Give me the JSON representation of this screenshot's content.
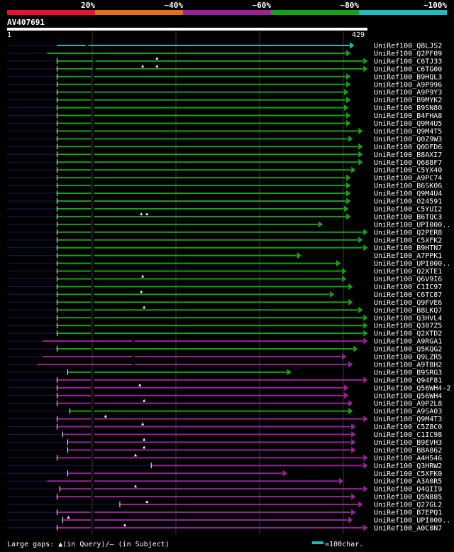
{
  "colors": {
    "bg": "#000000",
    "c20": "#e8132b",
    "c40": "#e07020",
    "c60": "#992299",
    "c80": "#18a018",
    "c100": "#22bbbb",
    "grid": "#3a3a3a",
    "seq": "#ffffff",
    "thin": "#1a1a5a"
  },
  "scale": {
    "labels": [
      "20%",
      "~40%",
      "~60%",
      "~80%",
      "~100%"
    ],
    "colors": [
      "#e8132b",
      "#e07020",
      "#992299",
      "#18a018",
      "#22bbbb"
    ]
  },
  "query": {
    "name": "AV407691",
    "start_label": "1",
    "end_label": "429",
    "length": 429
  },
  "footer": {
    "gaps_text": "Large gaps: ▲(in Query)/– (in Subject)",
    "legend_text": "=100char."
  },
  "chart_data": {
    "type": "alignment",
    "x_range": [
      1,
      429
    ],
    "hits": [
      {
        "name": "UniRef100_Q8LJS2",
        "start": 70,
        "end": 486,
        "color": "c100",
        "tl": 0,
        "gaps": [
          110
        ],
        "q": []
      },
      {
        "name": "UniRef100_Q2PF09",
        "start": 56,
        "end": 481,
        "color": "c80",
        "tl": 0,
        "gaps": [],
        "q": []
      },
      {
        "name": "UniRef100_C6TJ33",
        "start": 70,
        "end": 505,
        "color": "c80",
        "tl": 1,
        "gaps": [
          120
        ],
        "q": [
          210
        ]
      },
      {
        "name": "UniRef100_C6TG00",
        "start": 70,
        "end": 505,
        "color": "c80",
        "tl": 1,
        "gaps": [
          120
        ],
        "q": [
          190,
          210
        ]
      },
      {
        "name": "UniRef100_B9HQL3",
        "start": 70,
        "end": 481,
        "color": "c80",
        "tl": 1,
        "gaps": [
          118
        ],
        "q": []
      },
      {
        "name": "UniRef100_A9P996",
        "start": 70,
        "end": 481,
        "color": "c80",
        "tl": 1,
        "gaps": [
          118
        ],
        "q": []
      },
      {
        "name": "UniRef100_A9P9Y3",
        "start": 70,
        "end": 478,
        "color": "c80",
        "tl": 1,
        "gaps": [
          118
        ],
        "q": []
      },
      {
        "name": "UniRef100_B9MYK2",
        "start": 70,
        "end": 481,
        "color": "c80",
        "tl": 1,
        "gaps": [
          118
        ],
        "q": []
      },
      {
        "name": "UniRef100_B9SN80",
        "start": 70,
        "end": 478,
        "color": "c80",
        "tl": 1,
        "gaps": [
          118
        ],
        "q": []
      },
      {
        "name": "UniRef100_B4FHA8",
        "start": 70,
        "end": 481,
        "color": "c80",
        "tl": 1,
        "gaps": [
          118
        ],
        "q": []
      },
      {
        "name": "UniRef100_Q9M4U5",
        "start": 70,
        "end": 481,
        "color": "c80",
        "tl": 1,
        "gaps": [
          118
        ],
        "q": []
      },
      {
        "name": "UniRef100_Q9M4T5",
        "start": 70,
        "end": 498,
        "color": "c80",
        "tl": 1,
        "gaps": [
          118
        ],
        "q": []
      },
      {
        "name": "UniRef100_Q0Z9W3",
        "start": 70,
        "end": 484,
        "color": "c80",
        "tl": 1,
        "gaps": [
          118
        ],
        "q": []
      },
      {
        "name": "UniRef100_Q0DFD6",
        "start": 70,
        "end": 498,
        "color": "c80",
        "tl": 1,
        "gaps": [
          118
        ],
        "q": []
      },
      {
        "name": "UniRef100_B8AXI7",
        "start": 70,
        "end": 498,
        "color": "c80",
        "tl": 1,
        "gaps": [
          118
        ],
        "q": []
      },
      {
        "name": "UniRef100_Q688F7",
        "start": 70,
        "end": 498,
        "color": "c80",
        "tl": 1,
        "gaps": [
          118
        ],
        "q": []
      },
      {
        "name": "UniRef100_C5YX40",
        "start": 70,
        "end": 488,
        "color": "c80",
        "tl": 1,
        "gaps": [
          118
        ],
        "q": []
      },
      {
        "name": "UniRef100_A9PC74",
        "start": 70,
        "end": 481,
        "color": "c80",
        "tl": 1,
        "gaps": [
          118
        ],
        "q": []
      },
      {
        "name": "UniRef100_B6SK06",
        "start": 70,
        "end": 481,
        "color": "c80",
        "tl": 1,
        "gaps": [
          118
        ],
        "q": []
      },
      {
        "name": "UniRef100_Q9M4U4",
        "start": 70,
        "end": 481,
        "color": "c80",
        "tl": 1,
        "gaps": [
          118
        ],
        "q": []
      },
      {
        "name": "UniRef100_O24591",
        "start": 70,
        "end": 481,
        "color": "c80",
        "tl": 1,
        "gaps": [
          118
        ],
        "q": []
      },
      {
        "name": "UniRef100_C5YUI2",
        "start": 70,
        "end": 478,
        "color": "c80",
        "tl": 1,
        "gaps": [
          118
        ],
        "q": []
      },
      {
        "name": "UniRef100_B6TQC3",
        "start": 70,
        "end": 481,
        "color": "c80",
        "tl": 1,
        "gaps": [
          118
        ],
        "q": [
          188,
          196
        ]
      },
      {
        "name": "UniRef100_UPI000..",
        "start": 70,
        "end": 442,
        "color": "c80",
        "tl": 1,
        "gaps": [
          118
        ],
        "q": []
      },
      {
        "name": "UniRef100_Q2PER8",
        "start": 70,
        "end": 505,
        "color": "c80",
        "tl": 1,
        "gaps": [
          118
        ],
        "q": []
      },
      {
        "name": "UniRef100_C5XFK2",
        "start": 70,
        "end": 498,
        "color": "c80",
        "tl": 1,
        "gaps": [
          118
        ],
        "q": []
      },
      {
        "name": "UniRef100_B9HTN7",
        "start": 70,
        "end": 505,
        "color": "c80",
        "tl": 1,
        "gaps": [
          118
        ],
        "q": []
      },
      {
        "name": "UniRef100_A7PPK1",
        "start": 70,
        "end": 412,
        "color": "c80",
        "tl": 1,
        "gaps": [
          118
        ],
        "q": []
      },
      {
        "name": "UniRef100_UPI000..",
        "start": 70,
        "end": 467,
        "color": "c80",
        "tl": 1,
        "gaps": [
          118
        ],
        "q": []
      },
      {
        "name": "UniRef100_Q2XTE1",
        "start": 70,
        "end": 475,
        "color": "c80",
        "tl": 1,
        "gaps": [
          118
        ],
        "q": []
      },
      {
        "name": "UniRef100_Q6V9I6",
        "start": 70,
        "end": 475,
        "color": "c80",
        "tl": 1,
        "gaps": [
          118
        ],
        "q": [
          190
        ]
      },
      {
        "name": "UniRef100_C1IC97",
        "start": 70,
        "end": 484,
        "color": "c80",
        "tl": 1,
        "gaps": [
          118
        ],
        "q": []
      },
      {
        "name": "UniRef100_C6TC87",
        "start": 70,
        "end": 458,
        "color": "c80",
        "tl": 1,
        "gaps": [
          118
        ],
        "q": [
          188
        ]
      },
      {
        "name": "UniRef100_Q9FVE6",
        "start": 70,
        "end": 484,
        "color": "c80",
        "tl": 1,
        "gaps": [
          118
        ],
        "q": []
      },
      {
        "name": "UniRef100_B8LKQ7",
        "start": 70,
        "end": 498,
        "color": "c80",
        "tl": 1,
        "gaps": [
          118
        ],
        "q": [
          192
        ]
      },
      {
        "name": "UniRef100_Q3HVL4",
        "start": 70,
        "end": 505,
        "color": "c80",
        "tl": 1,
        "gaps": [
          118
        ],
        "q": []
      },
      {
        "name": "UniRef100_Q307Z5",
        "start": 70,
        "end": 505,
        "color": "c80",
        "tl": 1,
        "gaps": [
          118
        ],
        "q": []
      },
      {
        "name": "UniRef100_Q2XTD2",
        "start": 70,
        "end": 505,
        "color": "c80",
        "tl": 1,
        "gaps": [
          118
        ],
        "q": []
      },
      {
        "name": "UniRef100_A9RGA1",
        "start": 50,
        "end": 505,
        "color": "c60",
        "tl": 0,
        "gaps": [
          175
        ],
        "q": []
      },
      {
        "name": "UniRef100_Q5KQG2",
        "start": 70,
        "end": 491,
        "color": "c80",
        "tl": 1,
        "gaps": [
          118
        ],
        "q": []
      },
      {
        "name": "UniRef100_Q9LZR5",
        "start": 50,
        "end": 475,
        "color": "c60",
        "tl": 0,
        "gaps": [
          175
        ],
        "q": []
      },
      {
        "name": "UniRef100_A9T8H2",
        "start": 42,
        "end": 484,
        "color": "c60",
        "tl": 0,
        "gaps": [
          175
        ],
        "q": []
      },
      {
        "name": "UniRef100_B9SRG3",
        "start": 85,
        "end": 398,
        "color": "c80",
        "tl": 1,
        "gaps": [
          118
        ],
        "q": []
      },
      {
        "name": "UniRef100_Q94F81",
        "start": 70,
        "end": 505,
        "color": "c60",
        "tl": 1,
        "gaps": [
          118
        ],
        "q": []
      },
      {
        "name": "UniRef100_Q56WH4-2",
        "start": 70,
        "end": 478,
        "color": "c60",
        "tl": 1,
        "gaps": [
          118
        ],
        "q": [
          186
        ]
      },
      {
        "name": "UniRef100_Q56WH4",
        "start": 70,
        "end": 478,
        "color": "c60",
        "tl": 1,
        "gaps": [
          118
        ],
        "q": []
      },
      {
        "name": "UniRef100_A9P2L8",
        "start": 70,
        "end": 484,
        "color": "c60",
        "tl": 1,
        "gaps": [
          118
        ],
        "q": [
          192
        ]
      },
      {
        "name": "UniRef100_A9SA03",
        "start": 88,
        "end": 484,
        "color": "c80",
        "tl": 1,
        "gaps": [
          118
        ],
        "q": []
      },
      {
        "name": "UniRef100_Q9M4T3",
        "start": 70,
        "end": 505,
        "color": "c60",
        "tl": 1,
        "gaps": [
          118
        ],
        "q": [
          138
        ]
      },
      {
        "name": "UniRef100_C5Z8C0",
        "start": 70,
        "end": 488,
        "color": "c60",
        "tl": 1,
        "gaps": [
          118
        ],
        "q": [
          190
        ]
      },
      {
        "name": "UniRef100_C1IC98",
        "start": 78,
        "end": 488,
        "color": "c60",
        "tl": 1,
        "gaps": [
          118
        ],
        "q": []
      },
      {
        "name": "UniRef100_B9EVH3",
        "start": 85,
        "end": 488,
        "color": "c60",
        "tl": 1,
        "gaps": [
          118
        ],
        "q": [
          192
        ]
      },
      {
        "name": "UniRef100_B8A862",
        "start": 85,
        "end": 488,
        "color": "c60",
        "tl": 1,
        "gaps": [
          118
        ],
        "q": [
          192
        ]
      },
      {
        "name": "UniRef100_A4H546",
        "start": 70,
        "end": 505,
        "color": "c60",
        "tl": 1,
        "gaps": [
          118
        ],
        "q": [
          180
        ]
      },
      {
        "name": "UniRef100_Q3HRW2",
        "start": 202,
        "end": 505,
        "color": "c60",
        "tl": 1,
        "gaps": [],
        "q": []
      },
      {
        "name": "UniRef100_C5XFK0",
        "start": 85,
        "end": 392,
        "color": "c60",
        "tl": 1,
        "gaps": [
          118
        ],
        "q": []
      },
      {
        "name": "UniRef100_A3A0R5",
        "start": 56,
        "end": 471,
        "color": "c60",
        "tl": 0,
        "gaps": [
          118
        ],
        "q": []
      },
      {
        "name": "UniRef100_Q4QII9",
        "start": 74,
        "end": 505,
        "color": "c60",
        "tl": 1,
        "gaps": [
          118
        ],
        "q": [
          180
        ]
      },
      {
        "name": "UniRef100_Q5N885",
        "start": 70,
        "end": 488,
        "color": "c60",
        "tl": 1,
        "gaps": [
          118
        ],
        "q": []
      },
      {
        "name": "UniRef100_Q27GL2",
        "start": 158,
        "end": 498,
        "color": "c60",
        "tl": 1,
        "gaps": [],
        "q": [
          196
        ]
      },
      {
        "name": "UniRef100_B7EPQ1",
        "start": 70,
        "end": 488,
        "color": "c60",
        "tl": 1,
        "gaps": [
          118
        ],
        "q": []
      },
      {
        "name": "UniRef100_UPI000..",
        "start": 78,
        "end": 484,
        "color": "c60",
        "tl": 1,
        "gaps": [
          118
        ],
        "q": [
          86
        ]
      },
      {
        "name": "UniRef100_A0C0N7",
        "start": 70,
        "end": 505,
        "color": "c60",
        "tl": 1,
        "gaps": [
          118
        ],
        "q": [
          165
        ]
      }
    ]
  }
}
